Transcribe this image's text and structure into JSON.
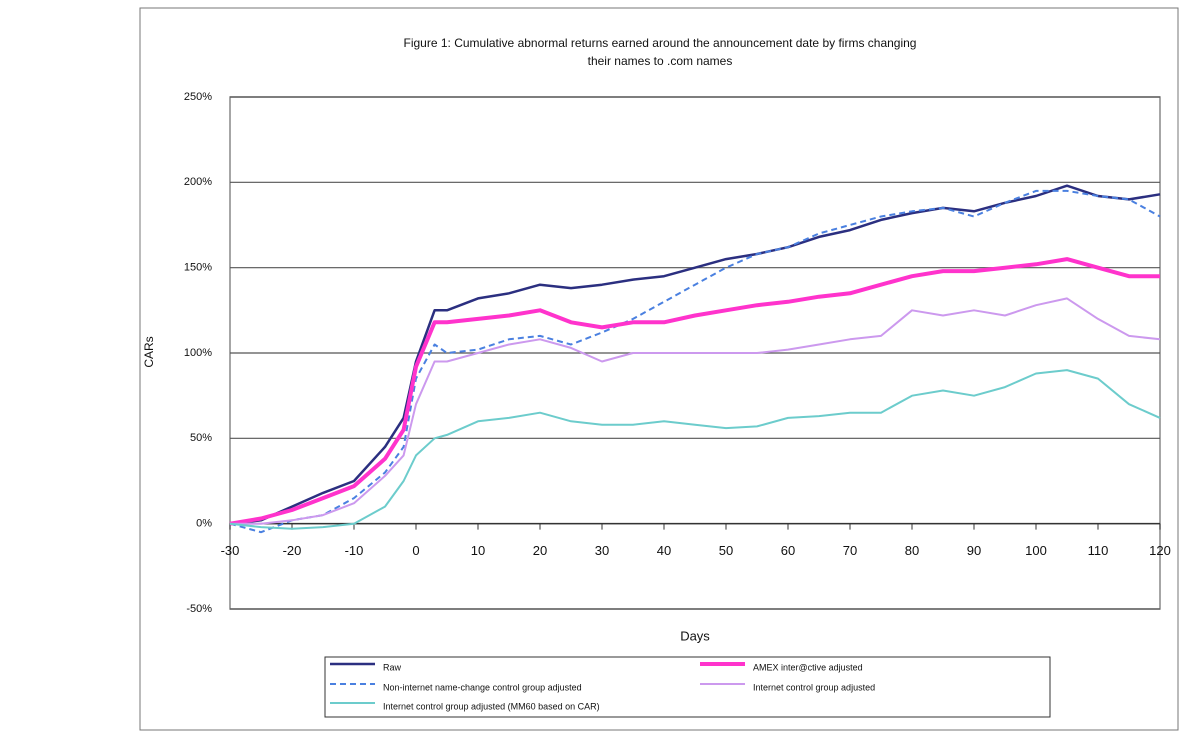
{
  "chart_data": {
    "type": "line",
    "title": [
      "Figure 1: Cumulative abnormal returns earned around the announcement date by firms changing",
      "their names to .com names"
    ],
    "x_label": "Days",
    "y_label": "CARs",
    "x": [
      -30,
      -25,
      -20,
      -15,
      -10,
      -5,
      -2,
      0,
      3,
      5,
      10,
      15,
      20,
      25,
      30,
      35,
      40,
      45,
      50,
      55,
      60,
      65,
      70,
      75,
      80,
      85,
      90,
      95,
      100,
      105,
      110,
      115,
      120
    ],
    "xlim": [
      -30,
      120
    ],
    "xticks": [
      -30,
      -20,
      -10,
      0,
      10,
      20,
      30,
      40,
      50,
      60,
      70,
      80,
      90,
      100,
      110,
      120
    ],
    "ylim": [
      -50,
      250
    ],
    "yticks": [
      {
        "value": -50,
        "label": "-50%"
      },
      {
        "value": 0,
        "label": "0%"
      },
      {
        "value": 50,
        "label": "50%"
      },
      {
        "value": 100,
        "label": "100%"
      },
      {
        "value": 150,
        "label": "150%"
      },
      {
        "value": 200,
        "label": "200%"
      },
      {
        "value": 250,
        "label": "250%"
      }
    ],
    "grid": true,
    "legend": "bottom",
    "series": [
      {
        "name": "Raw",
        "color": "#2b2f80",
        "width": 2.5,
        "dash": false,
        "values": [
          0,
          2,
          10,
          18,
          25,
          45,
          62,
          95,
          125,
          125,
          132,
          135,
          140,
          138,
          140,
          143,
          145,
          150,
          155,
          158,
          162,
          168,
          172,
          178,
          182,
          185,
          183,
          188,
          192,
          198,
          192,
          190,
          193
        ]
      },
      {
        "name": "Non-internet name-change control group adjusted",
        "color": "#4a80e0",
        "width": 2,
        "dash": true,
        "values": [
          0,
          -5,
          2,
          5,
          15,
          30,
          45,
          85,
          105,
          100,
          102,
          108,
          110,
          105,
          112,
          120,
          130,
          140,
          150,
          158,
          162,
          170,
          175,
          180,
          183,
          185,
          180,
          188,
          195,
          195,
          192,
          190,
          180
        ]
      },
      {
        "name": "AMEX inter@ctive adjusted",
        "color": "#ff33cc",
        "width": 4,
        "dash": false,
        "values": [
          0,
          3,
          8,
          15,
          22,
          38,
          55,
          92,
          118,
          118,
          120,
          122,
          125,
          118,
          115,
          118,
          118,
          122,
          125,
          128,
          130,
          133,
          135,
          140,
          145,
          148,
          148,
          150,
          152,
          155,
          150,
          145,
          145
        ]
      },
      {
        "name": "Internet control group adjusted",
        "color": "#cc99ee",
        "width": 2,
        "dash": false,
        "values": [
          0,
          0,
          2,
          5,
          12,
          28,
          40,
          70,
          95,
          95,
          100,
          105,
          108,
          103,
          95,
          100,
          100,
          100,
          100,
          100,
          102,
          105,
          108,
          110,
          125,
          122,
          125,
          122,
          128,
          132,
          120,
          110,
          108
        ]
      },
      {
        "name": "Internet control group adjusted (MM60 based on CAR)",
        "color": "#6ccccc",
        "width": 2,
        "dash": false,
        "values": [
          0,
          -2,
          -3,
          -2,
          0,
          10,
          25,
          40,
          50,
          52,
          60,
          62,
          65,
          60,
          58,
          58,
          60,
          58,
          56,
          57,
          62,
          63,
          65,
          65,
          75,
          78,
          75,
          80,
          88,
          90,
          85,
          70,
          62
        ]
      }
    ]
  }
}
